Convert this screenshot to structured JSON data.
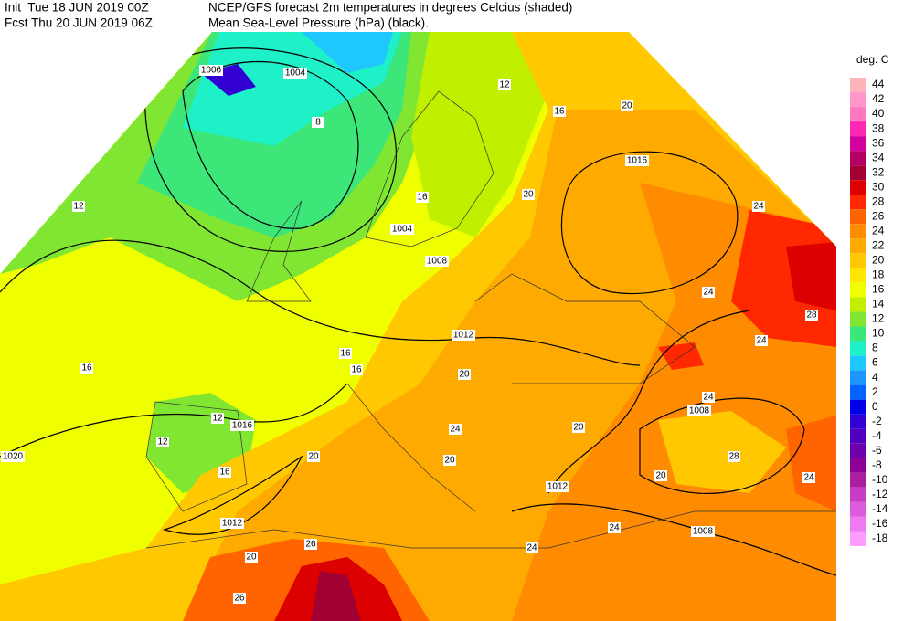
{
  "header": {
    "init": "Init  Tue 18 JUN 2019 00Z",
    "fcst": "Fcst Thu 20 JUN 2019 06Z",
    "title": "NCEP/GFS forecast 2m temperatures in degrees Celcius (shaded)",
    "subtitle": "Mean Sea-Level Pressure (hPa) (black)."
  },
  "legend": {
    "title": "deg. C",
    "levels": [
      44,
      42,
      40,
      38,
      36,
      34,
      32,
      30,
      28,
      26,
      24,
      22,
      20,
      18,
      16,
      14,
      12,
      10,
      8,
      6,
      4,
      2,
      0,
      -2,
      -4,
      -6,
      -8,
      -10,
      -12,
      -14,
      -16,
      -18
    ],
    "colors": [
      "#ffb4bc",
      "#ff96c8",
      "#ff78c0",
      "#ff28b4",
      "#d200a0",
      "#b40064",
      "#a00032",
      "#dc0000",
      "#ff2800",
      "#ff6400",
      "#ff8c00",
      "#ffaa00",
      "#ffc800",
      "#ffe600",
      "#f0ff00",
      "#c0f000",
      "#80e632",
      "#3ce678",
      "#1ef0c8",
      "#1ec8ff",
      "#1e96ff",
      "#0064ff",
      "#0000e6",
      "#3200d2",
      "#5000be",
      "#6e00aa",
      "#8c0096",
      "#aa1ea0",
      "#c83cc8",
      "#dc5adc",
      "#f078f0",
      "#ff9cff"
    ]
  },
  "map": {
    "isobar_labels": [
      1004,
      1016,
      1012,
      1008,
      1020,
      1016,
      1012,
      1008,
      1012,
      1006,
      1004,
      1008
    ],
    "temperature_labels": [
      12,
      16,
      20,
      8,
      12,
      16,
      24,
      24,
      28,
      24,
      20,
      16,
      16,
      16,
      20,
      20,
      24,
      20,
      16,
      12,
      12,
      20,
      20,
      26,
      24,
      24,
      20,
      24,
      28,
      24,
      26
    ]
  }
}
